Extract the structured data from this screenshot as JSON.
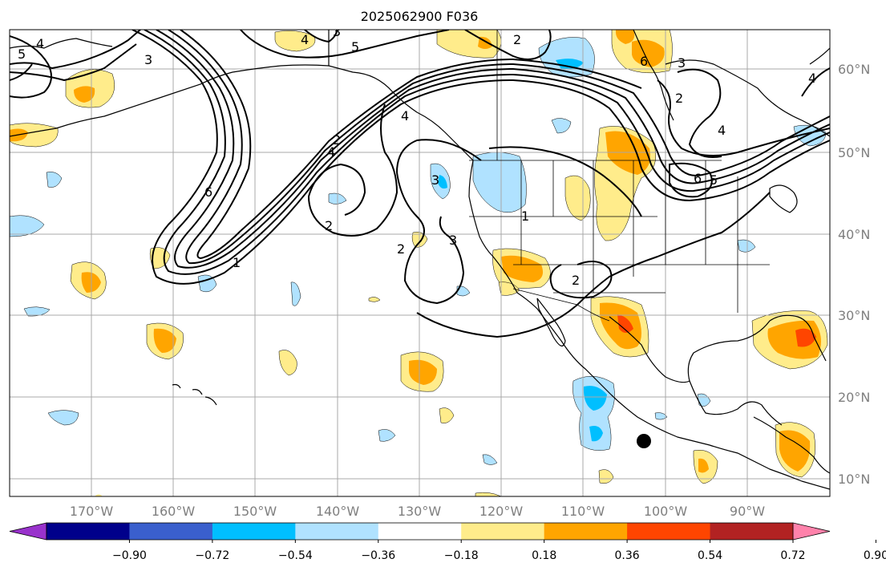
{
  "title": "2025062900 F036",
  "lat_labels": [
    "60°N",
    "50°N",
    "40°N",
    "30°N",
    "20°N",
    "10°N"
  ],
  "lon_labels": [
    "170°W",
    "160°W",
    "150°W",
    "140°W",
    "130°W",
    "120°W",
    "110°W",
    "100°W",
    "90°W"
  ],
  "colorbar": {
    "ticks": [
      "−0.90",
      "−0.72",
      "−0.54",
      "−0.36",
      "−0.18",
      "0.18",
      "0.36",
      "0.54",
      "0.72",
      "0.90"
    ],
    "colors": [
      "#9932cc",
      "#00008b",
      "#3a5fcd",
      "#00bfff",
      "#b0e2ff",
      "#ffffff",
      "#ffec8b",
      "#ffa500",
      "#ff4500",
      "#b22222",
      "#ff82ab"
    ]
  },
  "contour_labels": [
    "5",
    "4",
    "3",
    "2",
    "1",
    "6",
    "4",
    "2",
    "2",
    "3",
    "2",
    "1",
    "3",
    "2",
    "3",
    "4",
    "5",
    "6",
    "4",
    "5",
    "6",
    "3",
    "2",
    "2"
  ],
  "fill_colors": {
    "light_yellow": "#ffec8b",
    "orange": "#ffa500",
    "red_orange": "#ff4500",
    "light_blue": "#b0e2ff",
    "blue": "#00bfff"
  },
  "marker": "black-dot"
}
